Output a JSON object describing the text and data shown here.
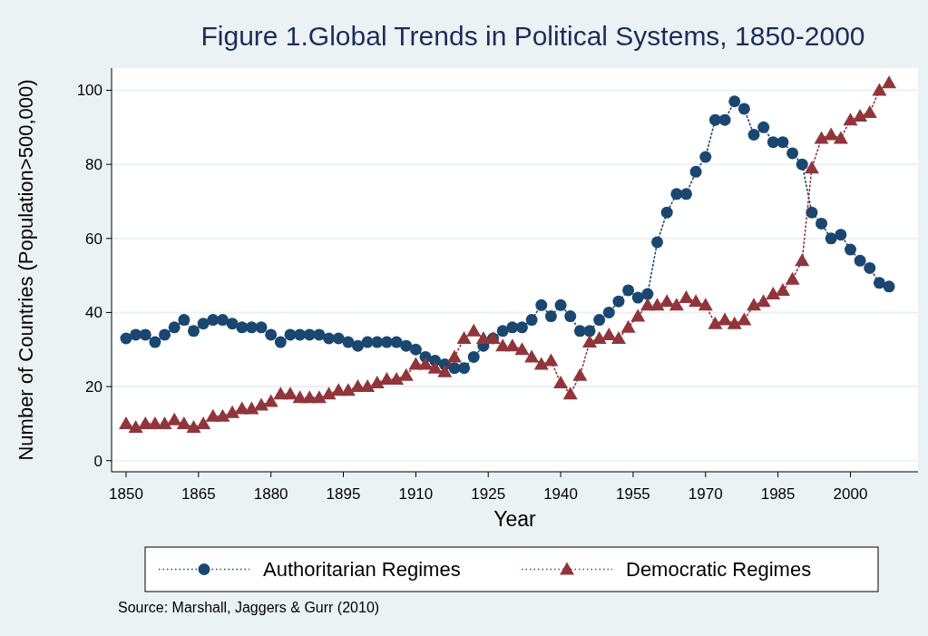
{
  "chart_data": {
    "type": "line",
    "title": "Figure 1.Global Trends in Political Systems, 1850-2000",
    "xlabel": "Year",
    "ylabel": "Number of Countries (Population>500,000)",
    "x": [
      1850,
      1852,
      1854,
      1856,
      1858,
      1860,
      1862,
      1864,
      1866,
      1868,
      1870,
      1872,
      1874,
      1876,
      1878,
      1880,
      1882,
      1884,
      1886,
      1888,
      1890,
      1892,
      1894,
      1896,
      1898,
      1900,
      1902,
      1904,
      1906,
      1908,
      1910,
      1912,
      1914,
      1916,
      1918,
      1920,
      1922,
      1924,
      1926,
      1928,
      1930,
      1932,
      1934,
      1936,
      1938,
      1940,
      1942,
      1944,
      1946,
      1948,
      1950,
      1952,
      1954,
      1956,
      1958,
      1960,
      1962,
      1964,
      1966,
      1968,
      1970,
      1972,
      1974,
      1976,
      1978,
      1980,
      1982,
      1984,
      1986,
      1988,
      1990,
      1992,
      1994,
      1996,
      1998,
      2000,
      2002,
      2004,
      2006,
      2008
    ],
    "series": [
      {
        "name": "Authoritarian Regimes",
        "color": "#1a476f",
        "marker": "circle",
        "values": [
          33,
          34,
          34,
          32,
          34,
          36,
          38,
          35,
          37,
          38,
          38,
          37,
          36,
          36,
          36,
          34,
          32,
          34,
          34,
          34,
          34,
          33,
          33,
          32,
          31,
          32,
          32,
          32,
          32,
          31,
          30,
          28,
          27,
          26,
          25,
          25,
          28,
          31,
          33,
          35,
          36,
          36,
          38,
          42,
          39,
          42,
          39,
          35,
          35,
          38,
          40,
          43,
          46,
          44,
          45,
          59,
          67,
          72,
          72,
          78,
          82,
          92,
          92,
          97,
          95,
          88,
          90,
          86,
          86,
          83,
          80,
          67,
          64,
          60,
          61,
          57,
          54,
          52,
          48,
          47
        ]
      },
      {
        "name": "Democratic Regimes",
        "color": "#90353b",
        "marker": "triangle",
        "values": [
          10,
          9,
          10,
          10,
          10,
          11,
          10,
          9,
          10,
          12,
          12,
          13,
          14,
          14,
          15,
          16,
          18,
          18,
          17,
          17,
          17,
          18,
          19,
          19,
          20,
          20,
          21,
          22,
          22,
          23,
          26,
          26,
          25,
          24,
          28,
          33,
          35,
          33,
          33,
          31,
          31,
          30,
          28,
          26,
          27,
          21,
          18,
          23,
          32,
          33,
          34,
          33,
          36,
          39,
          42,
          42,
          43,
          42,
          44,
          43,
          42,
          37,
          38,
          37,
          38,
          42,
          43,
          45,
          46,
          49,
          54,
          79,
          87,
          88,
          87,
          92,
          93,
          94,
          100,
          102
        ]
      }
    ],
    "xlim": [
      1847,
      2014
    ],
    "xticks": [
      1850,
      1865,
      1880,
      1895,
      1910,
      1925,
      1940,
      1955,
      1970,
      1985,
      2000
    ],
    "ylim": [
      -3,
      106
    ],
    "yticks": [
      0,
      20,
      40,
      60,
      80,
      100
    ],
    "grid": "y",
    "legend": "bottom",
    "line_style": "dotted",
    "annotations": [
      "Source: Marshall, Jaggers & Gurr (2010)"
    ]
  }
}
